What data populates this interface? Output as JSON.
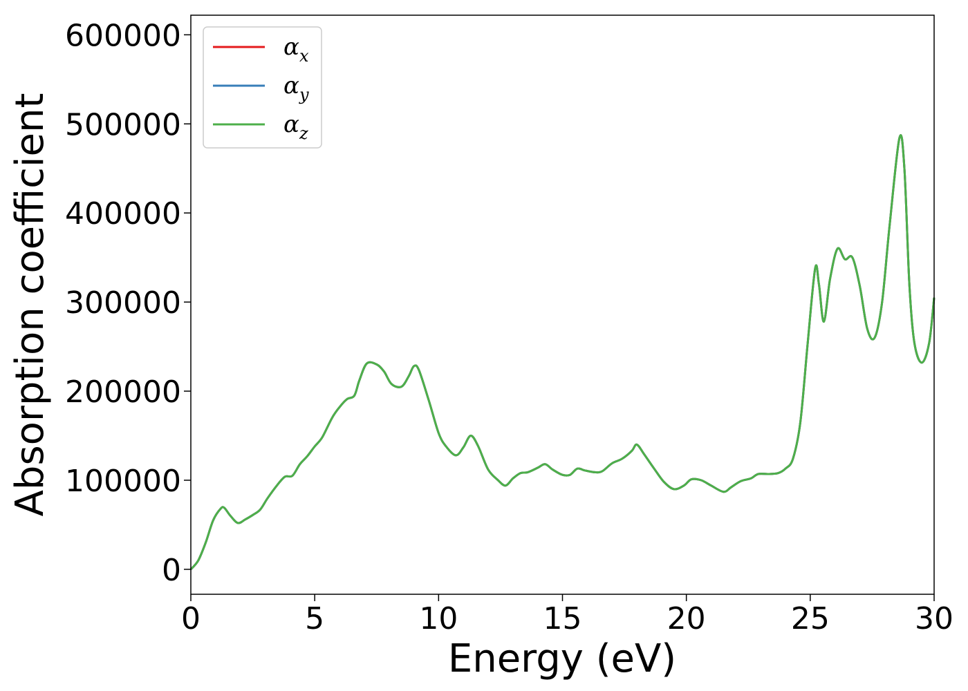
{
  "chart_data": {
    "type": "line",
    "xlabel": "Energy (eV)",
    "ylabel": "Absorption coefficient",
    "xlim": [
      0,
      30
    ],
    "ylim": [
      -28000,
      622000
    ],
    "xticks": [
      0,
      5,
      10,
      15,
      20,
      25,
      30
    ],
    "yticks": [
      0,
      100000,
      200000,
      300000,
      400000,
      500000,
      600000
    ],
    "xtick_labels": [
      "0",
      "5",
      "10",
      "15",
      "20",
      "25",
      "30"
    ],
    "ytick_labels": [
      "0",
      "100000",
      "200000",
      "300000",
      "400000",
      "500000",
      "600000"
    ],
    "grid": false,
    "legend_position": "top-left",
    "curve": {
      "x": [
        0,
        0.3,
        0.6,
        0.9,
        1.2,
        1.35,
        1.6,
        1.9,
        2.2,
        2.5,
        2.8,
        3.1,
        3.5,
        3.8,
        4.1,
        4.4,
        4.7,
        5.0,
        5.3,
        5.7,
        6.0,
        6.3,
        6.6,
        6.8,
        7.1,
        7.5,
        7.8,
        8.1,
        8.5,
        8.8,
        9.0,
        9.2,
        9.6,
        10.0,
        10.3,
        10.7,
        11.0,
        11.3,
        11.6,
        12.0,
        12.4,
        12.7,
        13.0,
        13.3,
        13.6,
        14.0,
        14.3,
        14.6,
        15.0,
        15.3,
        15.6,
        15.9,
        16.3,
        16.6,
        17.0,
        17.4,
        17.8,
        18.0,
        18.3,
        18.7,
        19.1,
        19.5,
        19.9,
        20.2,
        20.6,
        21.0,
        21.5,
        21.8,
        22.2,
        22.6,
        22.9,
        23.3,
        23.7,
        24.0,
        24.3,
        24.6,
        24.9,
        25.2,
        25.35,
        25.55,
        25.8,
        26.1,
        26.4,
        26.7,
        27.0,
        27.3,
        27.6,
        27.9,
        28.2,
        28.6,
        28.8,
        29.0,
        29.2,
        29.5,
        29.8,
        30.0
      ],
      "y": [
        0,
        10000,
        30000,
        55000,
        68000,
        69000,
        60000,
        52000,
        56000,
        61000,
        67000,
        80000,
        95000,
        104000,
        105000,
        118000,
        127000,
        138000,
        148000,
        170000,
        182000,
        191000,
        195000,
        212000,
        231000,
        230000,
        222000,
        208000,
        205000,
        217000,
        228000,
        224000,
        190000,
        153000,
        138000,
        128000,
        137000,
        150000,
        138000,
        112000,
        100000,
        94000,
        102000,
        108000,
        109000,
        114000,
        118000,
        112000,
        106000,
        106000,
        113000,
        111000,
        109000,
        110000,
        119000,
        124000,
        133000,
        140000,
        129000,
        113000,
        98000,
        90000,
        94000,
        101000,
        100000,
        94000,
        87000,
        92000,
        99000,
        102000,
        107000,
        107000,
        108000,
        113000,
        124000,
        165000,
        255000,
        338000,
        320000,
        278000,
        326000,
        360000,
        348000,
        350000,
        318000,
        270000,
        260000,
        300000,
        385000,
        484000,
        450000,
        320000,
        255000,
        232000,
        254000,
        305000
      ]
    },
    "series": [
      {
        "name": "α",
        "sub": "x",
        "color": "#e41a1c"
      },
      {
        "name": "α",
        "sub": "y",
        "color": "#377eb8"
      },
      {
        "name": "α",
        "sub": "z",
        "color": "#4daf4a"
      }
    ]
  }
}
